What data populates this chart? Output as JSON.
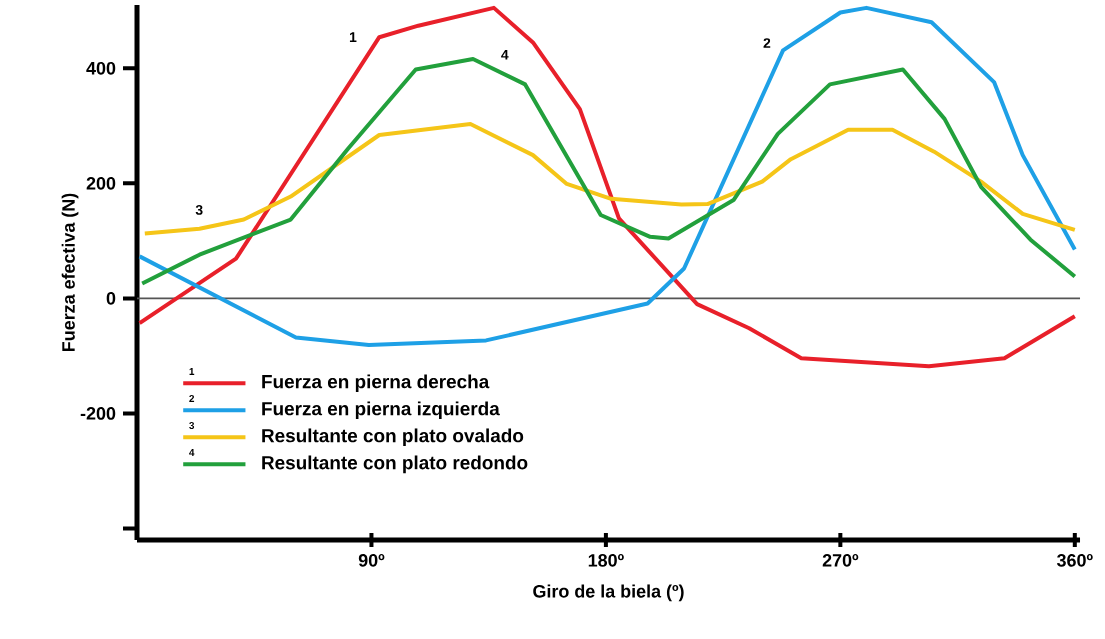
{
  "chart_data": {
    "type": "line",
    "xlabel": "Giro de la biela (º)",
    "ylabel": "Fuerza efectiva (N)",
    "xlim": [
      0,
      362
    ],
    "ylim": [
      -420,
      510
    ],
    "xticks": [
      {
        "value": 90,
        "label": "90º"
      },
      {
        "value": 180,
        "label": "180º"
      },
      {
        "value": 270,
        "label": "270º"
      },
      {
        "value": 360,
        "label": "360º"
      }
    ],
    "yticks": [
      {
        "value": -400,
        "label": null
      },
      -200,
      0,
      200,
      400
    ],
    "legend": "bottom left",
    "line_style": "solid",
    "ref_lines": [
      {
        "axis": "y",
        "value": 0,
        "color": "#555555"
      }
    ],
    "annotations": [
      "1",
      "2",
      "3",
      "4"
    ],
    "series": [
      {
        "name": "Fuerza en pierna derecha",
        "color": "#e8202a",
        "x": [
          1,
          38,
          93,
          108,
          137,
          152,
          170,
          185,
          215,
          235,
          255,
          304,
          333,
          360
        ],
        "values": [
          -43,
          69,
          454,
          474,
          505,
          445,
          329,
          139,
          -10,
          -52,
          -104,
          -118,
          -104,
          -31
        ]
      },
      {
        "name": "Fuerza en pierna izquierda",
        "color": "#1ea0e6",
        "x": [
          1,
          61,
          89,
          134,
          196,
          210,
          248,
          270,
          280,
          305,
          329,
          340,
          360
        ],
        "values": [
          73,
          -68,
          -81,
          -73,
          -9,
          52,
          431,
          497,
          505,
          480,
          376,
          249,
          85
        ]
      },
      {
        "name": "Resultante con plato ovalado",
        "color": "#f5c518",
        "x": [
          3,
          24,
          41,
          59,
          93,
          128,
          152,
          165,
          182,
          209,
          219,
          240,
          251,
          273,
          290,
          306,
          324,
          340,
          360
        ],
        "values": [
          113,
          121,
          137,
          177,
          284,
          303,
          249,
          199,
          173,
          163,
          164,
          203,
          242,
          293,
          293,
          255,
          203,
          147,
          119
        ]
      },
      {
        "name": "Resultante con plato redondo",
        "color": "#22a03c",
        "x": [
          2,
          24,
          59,
          81,
          107,
          129,
          149,
          178,
          197,
          204,
          229,
          246,
          266,
          294,
          310,
          324,
          343,
          360
        ],
        "values": [
          26,
          76,
          137,
          260,
          398,
          416,
          372,
          145,
          107,
          104,
          171,
          286,
          372,
          398,
          312,
          194,
          102,
          38
        ]
      }
    ]
  }
}
